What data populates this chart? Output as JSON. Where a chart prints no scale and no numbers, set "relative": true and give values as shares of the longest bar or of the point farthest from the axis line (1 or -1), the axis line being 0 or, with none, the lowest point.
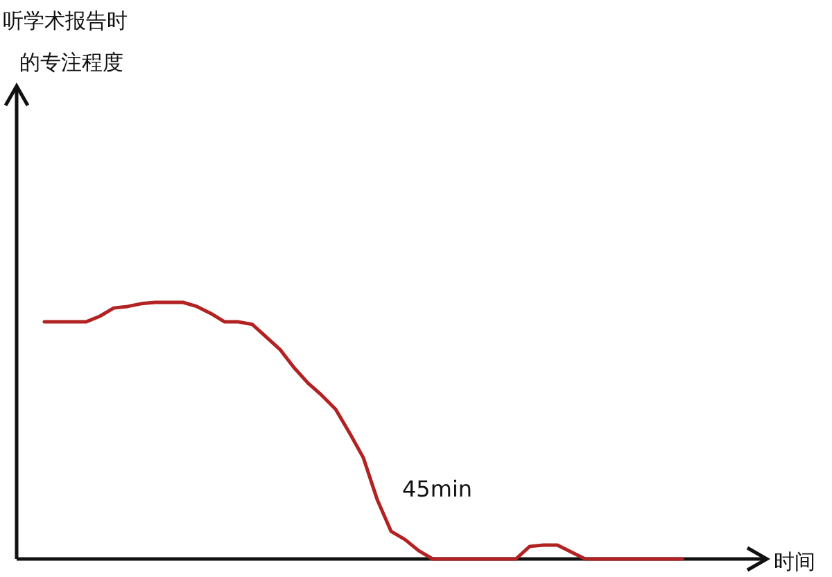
{
  "chart_data": {
    "type": "line",
    "relative": true,
    "xlabel": "时间",
    "annotations": [
      "听学术报告时的专注程度",
      "45min"
    ],
    "categories": [
      null,
      null,
      null,
      null,
      null,
      null,
      null,
      null,
      null,
      null,
      null,
      null,
      null,
      null,
      null,
      null,
      null,
      null,
      null,
      null,
      null,
      null,
      null,
      null,
      null,
      null,
      null,
      null,
      null,
      null,
      null,
      null,
      null,
      null,
      null,
      null,
      null,
      null,
      null,
      null,
      null,
      null,
      null,
      null,
      null,
      null,
      null
    ],
    "series": [
      {
        "color": "#b22222",
        "values": [
          0.924,
          0.924,
          0.924,
          0.924,
          0.946,
          0.978,
          0.984,
          0.995,
          1,
          1,
          1,
          0.984,
          0.957,
          0.924,
          0.924,
          0.914,
          0.865,
          0.816,
          0.746,
          0.686,
          0.638,
          0.584,
          0.492,
          0.395,
          0.232,
          0.108,
          0.076,
          0.032,
          0,
          0,
          0,
          0,
          0,
          0,
          0,
          0.049,
          0.054,
          0.054,
          0.027,
          0,
          0,
          0,
          0,
          0,
          0,
          0,
          0
        ]
      }
    ]
  }
}
